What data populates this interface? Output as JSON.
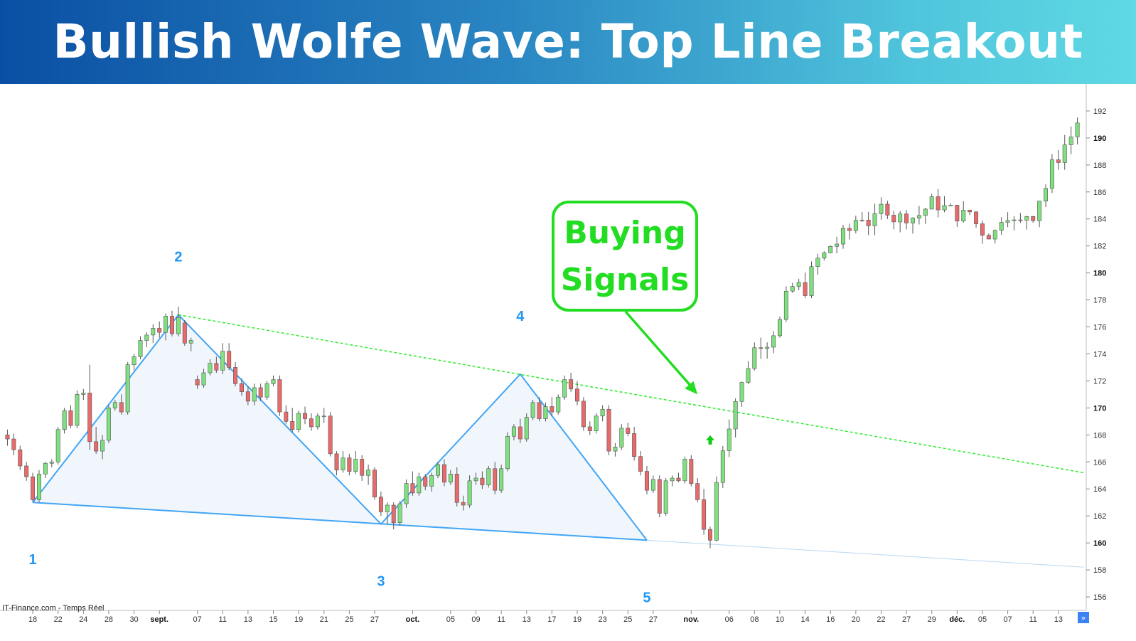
{
  "banner": {
    "title": "Bullish Wolfe Wave: Top Line Breakout"
  },
  "chart_data": {
    "type": "candlestick",
    "source": "IT-Finance.com - Temps Réel",
    "y_ticks": [
      156,
      158,
      160,
      162,
      164,
      166,
      168,
      170,
      172,
      174,
      176,
      178,
      180,
      182,
      184,
      186,
      188,
      190,
      192
    ],
    "y_bold_ticks": [
      160,
      170,
      180,
      190
    ],
    "ylim": [
      155,
      194
    ],
    "bars_count": 170,
    "x_labels": [
      {
        "bar": 4,
        "label": "18"
      },
      {
        "bar": 8,
        "label": "22"
      },
      {
        "bar": 12,
        "label": "24"
      },
      {
        "bar": 16,
        "label": "28"
      },
      {
        "bar": 20,
        "label": "30"
      },
      {
        "bar": 24,
        "label": "sept.",
        "bold": true
      },
      {
        "bar": 30,
        "label": "07"
      },
      {
        "bar": 34,
        "label": "11"
      },
      {
        "bar": 38,
        "label": "13"
      },
      {
        "bar": 42,
        "label": "15"
      },
      {
        "bar": 46,
        "label": "19"
      },
      {
        "bar": 50,
        "label": "21"
      },
      {
        "bar": 54,
        "label": "25"
      },
      {
        "bar": 58,
        "label": "27"
      },
      {
        "bar": 64,
        "label": "oct.",
        "bold": true
      },
      {
        "bar": 70,
        "label": "05"
      },
      {
        "bar": 74,
        "label": "09"
      },
      {
        "bar": 78,
        "label": "11"
      },
      {
        "bar": 82,
        "label": "13"
      },
      {
        "bar": 86,
        "label": "17"
      },
      {
        "bar": 90,
        "label": "19"
      },
      {
        "bar": 94,
        "label": "23"
      },
      {
        "bar": 98,
        "label": "25"
      },
      {
        "bar": 102,
        "label": "27"
      },
      {
        "bar": 108,
        "label": "nov.",
        "bold": true
      },
      {
        "bar": 114,
        "label": "06"
      },
      {
        "bar": 118,
        "label": "08"
      },
      {
        "bar": 122,
        "label": "10"
      },
      {
        "bar": 126,
        "label": "14"
      },
      {
        "bar": 130,
        "label": "16"
      },
      {
        "bar": 134,
        "label": "20"
      },
      {
        "bar": 138,
        "label": "22"
      },
      {
        "bar": 142,
        "label": "27"
      },
      {
        "bar": 146,
        "label": "29"
      },
      {
        "bar": 150,
        "label": "déc.",
        "bold": true
      },
      {
        "bar": 154,
        "label": "05"
      },
      {
        "bar": 158,
        "label": "07"
      },
      {
        "bar": 162,
        "label": "11"
      },
      {
        "bar": 166,
        "label": "13"
      }
    ],
    "pivots": [
      {
        "label": "1",
        "bar": 4,
        "price": 163.0
      },
      {
        "label": "2",
        "bar": 27,
        "price": 176.9
      },
      {
        "label": "3",
        "bar": 59,
        "price": 161.4
      },
      {
        "label": "4",
        "bar": 81,
        "price": 172.5
      },
      {
        "label": "5",
        "bar": 101,
        "price": 160.2
      }
    ],
    "lines": [
      {
        "name": "1-3-5 line",
        "from": {
          "bar": 4,
          "price": 163.0
        },
        "to": {
          "bar": 101,
          "price": 160.2
        },
        "extend_to": {
          "bar": 170,
          "price": 158.2
        }
      },
      {
        "name": "2-4 line",
        "from": {
          "bar": 27,
          "price": 176.9
        },
        "to": {
          "bar": 81,
          "price": 172.5
        },
        "extend_to": {
          "bar": 170,
          "price": 165.2
        }
      }
    ],
    "callout": {
      "lines": [
        "Buying",
        "Signals"
      ],
      "arrow_to": {
        "bar": 109,
        "price": 171.0
      }
    },
    "signal_arrow": {
      "bar": 111,
      "price": 167.6
    },
    "candles": [
      [
        168.0,
        168.4,
        167.2,
        167.7
      ],
      [
        167.7,
        168.1,
        166.5,
        166.9
      ],
      [
        166.9,
        167.2,
        165.4,
        165.7
      ],
      [
        165.7,
        166.0,
        164.6,
        164.9
      ],
      [
        164.9,
        165.2,
        163.0,
        163.2
      ],
      [
        163.2,
        165.4,
        163.0,
        165.1
      ],
      [
        165.1,
        166.0,
        164.8,
        165.9
      ],
      [
        165.9,
        166.2,
        165.6,
        166.0
      ],
      [
        166.0,
        168.6,
        165.8,
        168.4
      ],
      [
        168.4,
        170.0,
        168.1,
        169.8
      ],
      [
        169.8,
        170.2,
        168.5,
        168.7
      ],
      [
        168.7,
        171.3,
        168.5,
        171.0
      ],
      [
        171.0,
        171.4,
        170.6,
        171.1
      ],
      [
        171.1,
        173.2,
        166.9,
        167.5
      ],
      [
        167.5,
        168.6,
        166.6,
        166.8
      ],
      [
        166.8,
        168.0,
        166.2,
        167.6
      ],
      [
        167.6,
        170.2,
        167.4,
        170.0
      ],
      [
        170.0,
        170.6,
        169.8,
        170.4
      ],
      [
        170.4,
        171.0,
        169.5,
        169.7
      ],
      [
        169.7,
        173.4,
        169.5,
        173.2
      ],
      [
        173.2,
        174.0,
        172.8,
        173.8
      ],
      [
        173.8,
        175.3,
        173.6,
        175.0
      ],
      [
        175.0,
        175.6,
        174.5,
        175.4
      ],
      [
        175.4,
        176.2,
        174.8,
        175.9
      ],
      [
        175.9,
        176.4,
        175.2,
        175.6
      ],
      [
        175.6,
        177.0,
        175.0,
        176.8
      ],
      [
        176.8,
        177.2,
        175.3,
        175.5
      ],
      [
        175.5,
        177.5,
        175.3,
        176.7
      ],
      [
        176.3,
        176.5,
        174.6,
        174.8
      ],
      [
        174.8,
        175.2,
        174.2,
        175.0
      ],
      [
        172.1,
        172.4,
        171.4,
        171.7
      ],
      [
        171.7,
        172.9,
        171.5,
        172.6
      ],
      [
        172.6,
        173.6,
        172.4,
        173.3
      ],
      [
        173.3,
        173.8,
        172.6,
        172.8
      ],
      [
        172.8,
        174.8,
        172.5,
        174.2
      ],
      [
        174.2,
        174.8,
        172.8,
        173.0
      ],
      [
        173.0,
        173.4,
        171.6,
        171.8
      ],
      [
        171.8,
        172.2,
        170.9,
        171.2
      ],
      [
        171.2,
        171.6,
        170.2,
        170.5
      ],
      [
        170.5,
        171.8,
        170.2,
        171.5
      ],
      [
        171.5,
        171.8,
        170.5,
        170.8
      ],
      [
        170.8,
        172.0,
        170.6,
        171.8
      ],
      [
        171.8,
        172.4,
        171.6,
        172.1
      ],
      [
        172.1,
        172.4,
        169.4,
        169.7
      ],
      [
        169.7,
        170.2,
        168.8,
        169.0
      ],
      [
        169.0,
        170.0,
        168.2,
        168.4
      ],
      [
        168.4,
        169.8,
        168.2,
        169.6
      ],
      [
        169.6,
        170.1,
        168.8,
        169.2
      ],
      [
        169.2,
        169.6,
        168.3,
        168.6
      ],
      [
        168.6,
        169.6,
        168.4,
        169.4
      ],
      [
        169.4,
        170.0,
        168.9,
        169.4
      ],
      [
        169.4,
        169.7,
        166.4,
        166.6
      ],
      [
        166.6,
        166.8,
        165.0,
        165.4
      ],
      [
        165.4,
        166.8,
        165.2,
        166.3
      ],
      [
        166.3,
        166.6,
        165.0,
        165.3
      ],
      [
        165.3,
        166.8,
        165.1,
        166.2
      ],
      [
        166.2,
        166.5,
        164.6,
        165.0
      ],
      [
        165.0,
        165.8,
        164.3,
        165.4
      ],
      [
        165.4,
        165.6,
        163.2,
        163.4
      ],
      [
        163.4,
        163.8,
        162.0,
        162.3
      ],
      [
        162.3,
        163.0,
        161.4,
        162.8
      ],
      [
        162.8,
        163.0,
        161.0,
        161.5
      ],
      [
        161.5,
        163.1,
        161.3,
        162.9
      ],
      [
        162.9,
        164.7,
        162.6,
        164.4
      ],
      [
        164.4,
        165.3,
        163.5,
        163.7
      ],
      [
        163.7,
        165.2,
        163.5,
        164.9
      ],
      [
        164.9,
        165.1,
        163.9,
        164.2
      ],
      [
        164.2,
        165.2,
        163.8,
        165.0
      ],
      [
        165.0,
        166.0,
        164.8,
        165.8
      ],
      [
        165.8,
        166.2,
        164.2,
        164.5
      ],
      [
        164.5,
        165.4,
        164.3,
        165.1
      ],
      [
        165.1,
        165.6,
        162.7,
        163.0
      ],
      [
        163.0,
        163.5,
        162.4,
        162.8
      ],
      [
        162.8,
        165.0,
        162.6,
        164.6
      ],
      [
        164.6,
        165.2,
        164.3,
        164.8
      ],
      [
        164.8,
        165.3,
        164.0,
        164.3
      ],
      [
        164.3,
        165.7,
        164.1,
        165.5
      ],
      [
        165.5,
        166.0,
        163.6,
        163.9
      ],
      [
        163.9,
        165.8,
        163.7,
        165.5
      ],
      [
        165.5,
        168.2,
        165.3,
        167.9
      ],
      [
        167.9,
        168.8,
        167.6,
        168.6
      ],
      [
        168.6,
        169.2,
        167.4,
        167.7
      ],
      [
        167.7,
        169.6,
        167.5,
        169.3
      ],
      [
        169.3,
        170.6,
        169.1,
        170.4
      ],
      [
        170.4,
        170.8,
        169.0,
        169.2
      ],
      [
        169.2,
        170.4,
        169.0,
        170.1
      ],
      [
        170.1,
        170.8,
        169.4,
        169.7
      ],
      [
        169.7,
        171.0,
        169.5,
        170.8
      ],
      [
        170.8,
        172.4,
        170.6,
        172.1
      ],
      [
        172.1,
        172.6,
        171.2,
        171.4
      ],
      [
        171.4,
        172.0,
        170.2,
        170.5
      ],
      [
        170.5,
        170.8,
        168.3,
        168.6
      ],
      [
        168.6,
        169.0,
        168.0,
        168.3
      ],
      [
        168.3,
        169.6,
        168.1,
        169.4
      ],
      [
        169.4,
        170.2,
        169.0,
        169.9
      ],
      [
        169.9,
        170.2,
        166.5,
        166.8
      ],
      [
        166.8,
        167.4,
        166.4,
        167.1
      ],
      [
        167.1,
        168.8,
        166.9,
        168.5
      ],
      [
        168.5,
        168.9,
        167.9,
        168.1
      ],
      [
        168.1,
        168.6,
        166.1,
        166.4
      ],
      [
        166.4,
        166.8,
        165.0,
        165.3
      ],
      [
        165.3,
        165.7,
        163.6,
        163.9
      ],
      [
        163.9,
        165.0,
        163.7,
        164.7
      ],
      [
        164.7,
        165.0,
        161.9,
        162.2
      ],
      [
        162.2,
        164.8,
        162.0,
        164.6
      ],
      [
        164.6,
        165.0,
        164.2,
        164.8
      ],
      [
        164.8,
        165.2,
        164.5,
        164.6
      ],
      [
        164.6,
        166.4,
        164.4,
        166.2
      ],
      [
        166.2,
        166.5,
        164.2,
        164.4
      ],
      [
        164.4,
        164.8,
        163.0,
        163.2
      ],
      [
        163.2,
        164.0,
        160.6,
        161.0
      ],
      [
        161.0,
        161.2,
        159.6,
        160.2
      ]
    ]
  }
}
